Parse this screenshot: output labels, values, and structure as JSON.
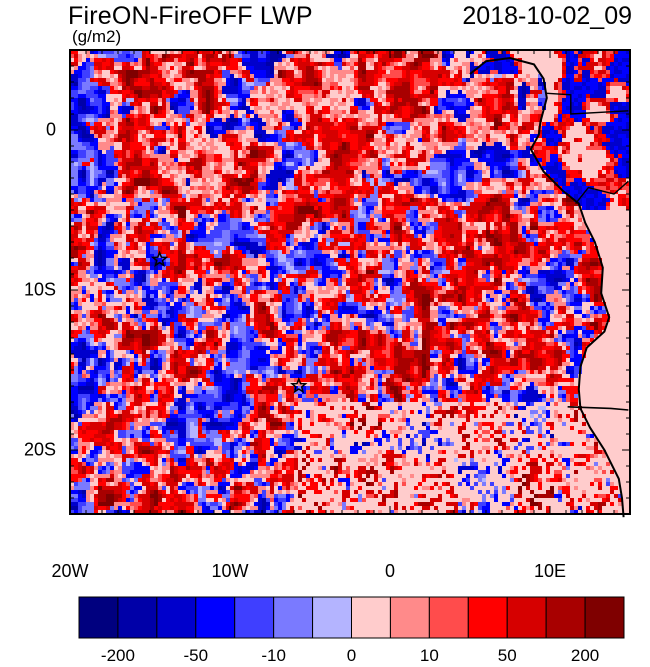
{
  "title": "FireON-FireOFF LWP",
  "datetime": "2018-10-02_09",
  "units": "(g/m2)",
  "axes": {
    "x_ticks": [
      {
        "lon": -20,
        "label": "20W"
      },
      {
        "lon": -10,
        "label": "10W"
      },
      {
        "lon": 0,
        "label": "0"
      },
      {
        "lon": 10,
        "label": "10E"
      }
    ],
    "y_ticks": [
      {
        "lat": 0,
        "label": "0"
      },
      {
        "lat": -10,
        "label": "10S"
      },
      {
        "lat": -20,
        "label": "20S"
      }
    ],
    "lon_range": [
      -20,
      15
    ],
    "lat_range": [
      -24,
      5
    ]
  },
  "colorbar": {
    "colors": [
      "#00007f",
      "#0000a8",
      "#0000cc",
      "#0000ff",
      "#3f3fff",
      "#7a7aff",
      "#b4b4ff",
      "#ffcccc",
      "#ff8a8a",
      "#ff4c4c",
      "#ff0000",
      "#d60000",
      "#a80000",
      "#7f0000"
    ],
    "labels": [
      {
        "boundary": 1,
        "text": "-200"
      },
      {
        "boundary": 3,
        "text": "-50"
      },
      {
        "boundary": 5,
        "text": "-10"
      },
      {
        "boundary": 7,
        "text": "0"
      },
      {
        "boundary": 9,
        "text": "10"
      },
      {
        "boundary": 11,
        "text": "50"
      },
      {
        "boundary": 13,
        "text": "200"
      }
    ]
  },
  "markers": [
    {
      "name": "star-marker-west",
      "lon": -14.4,
      "lat": -8.1
    },
    {
      "name": "star-marker-central",
      "lon": -5.7,
      "lat": -16.0
    }
  ]
}
